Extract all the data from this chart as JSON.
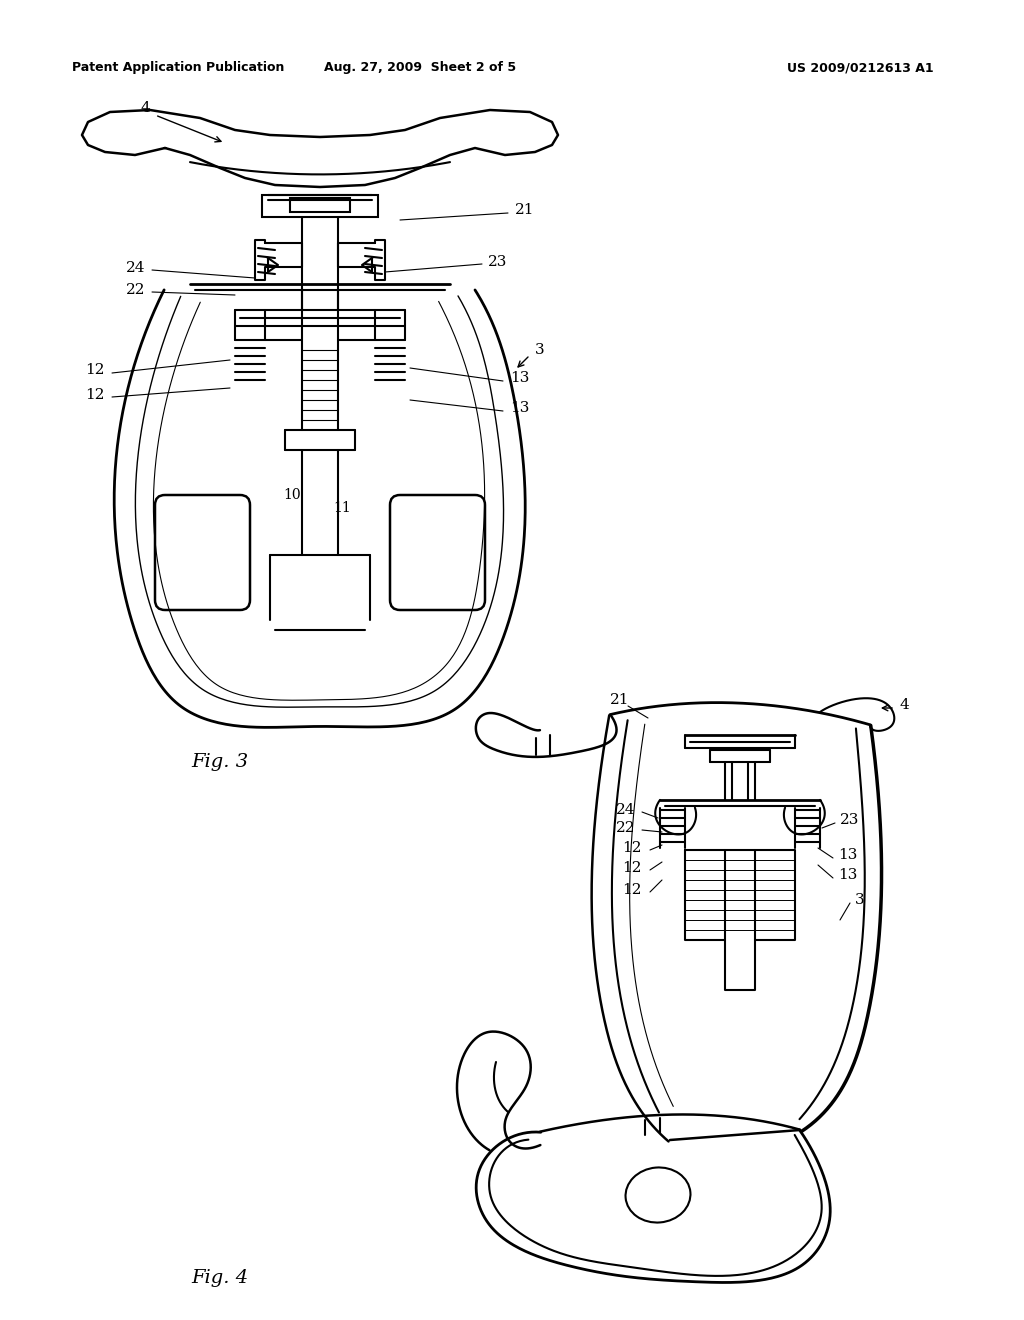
{
  "background_color": "#ffffff",
  "header_left": "Patent Application Publication",
  "header_center": "Aug. 27, 2009  Sheet 2 of 5",
  "header_right": "US 2009/0212613 A1",
  "fig3_label": "Fig. 3",
  "fig4_label": "Fig. 4",
  "line_color": "#000000",
  "line_width": 1.5,
  "label_fontsize": 11
}
